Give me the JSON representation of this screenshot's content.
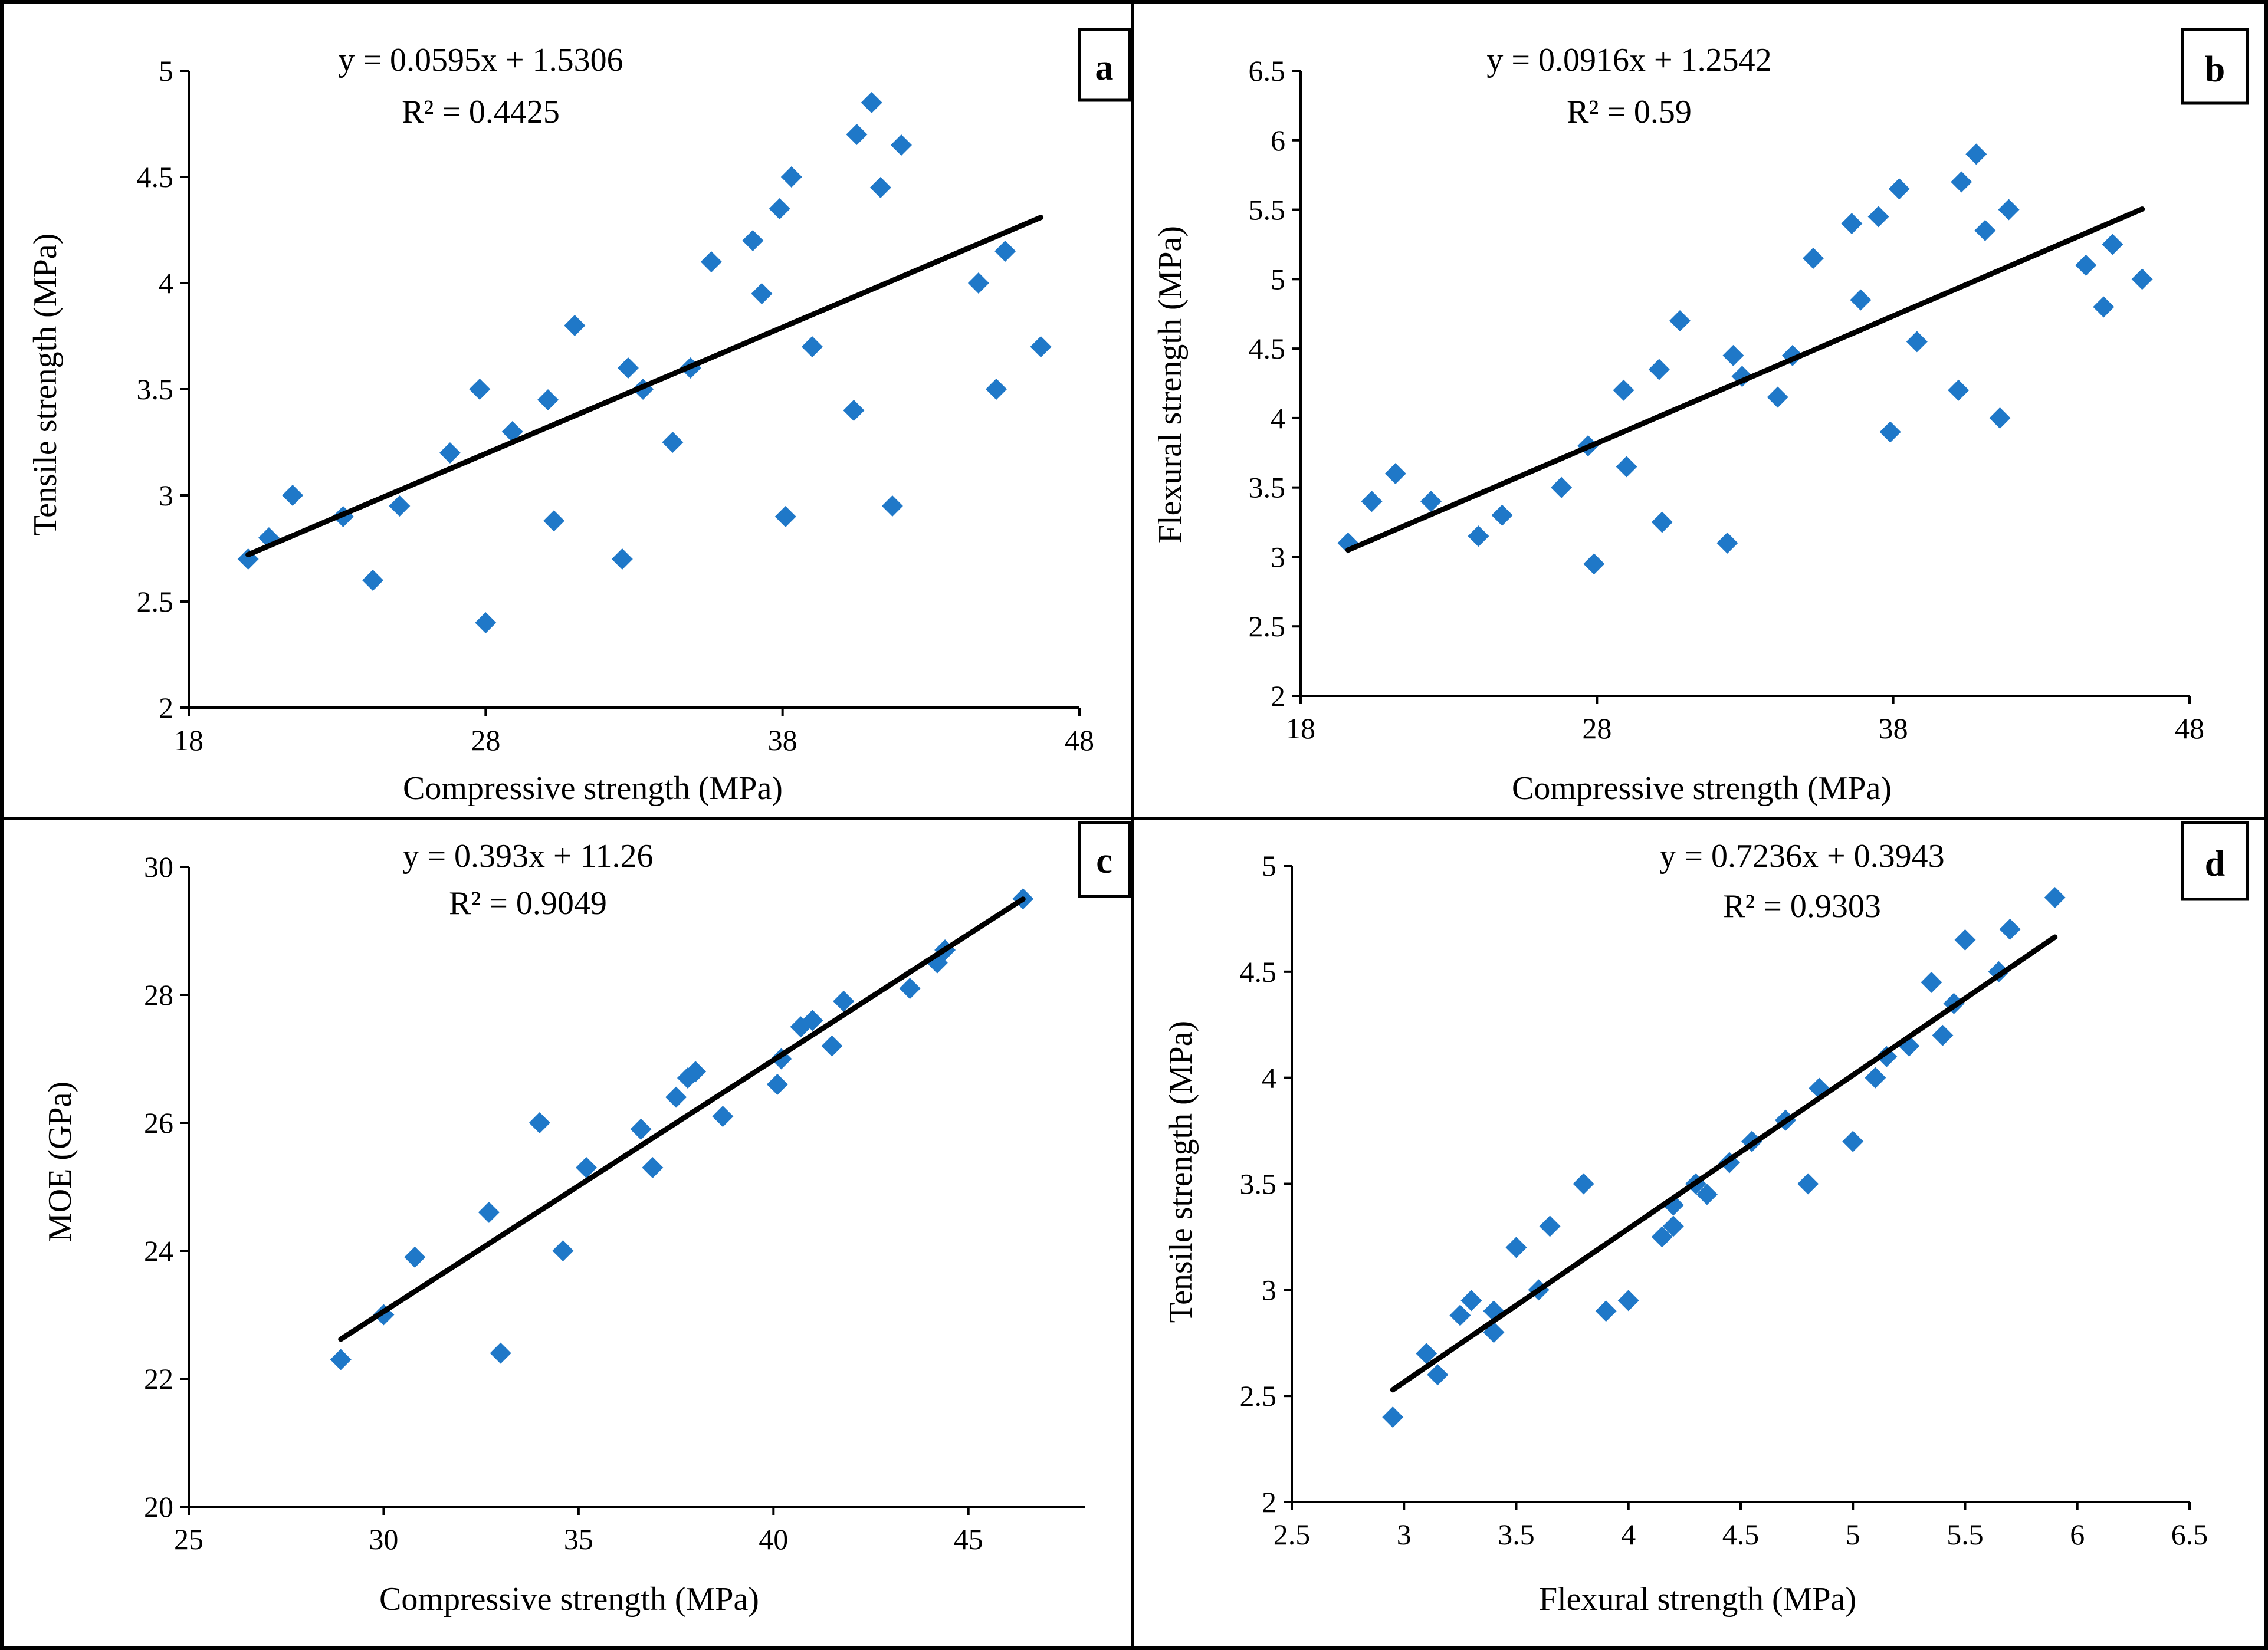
{
  "colors": {
    "marker": "#1f78c8",
    "trendline": "#000000",
    "axis": "#000000",
    "background": "#ffffff"
  },
  "chart_data": [
    {
      "panel": "a",
      "type": "scatter",
      "title": "",
      "xlabel": "Compressive strength (MPa)",
      "ylabel": "Tensile strength (MPa)",
      "xlim": [
        18,
        48
      ],
      "ylim": [
        2,
        5
      ],
      "xticks": [
        18,
        28,
        38,
        48
      ],
      "yticks": [
        2,
        2.5,
        3,
        3.5,
        4,
        4.5,
        5
      ],
      "xtick_labels": [
        "18",
        "28",
        "38",
        "48"
      ],
      "ytick_labels": [
        "2",
        "2.5",
        "3",
        "3.5",
        "4",
        "4.5",
        "5"
      ],
      "equation": "y = 0.0595x + 1.5306",
      "r2": "R² = 0.4425",
      "trendline": {
        "slope": 0.0595,
        "intercept": 1.5306,
        "x_range": [
          20.0,
          46.7
        ]
      },
      "series": [
        {
          "name": "data",
          "points": [
            [
              20.0,
              2.7
            ],
            [
              20.7,
              2.8
            ],
            [
              21.5,
              3.0
            ],
            [
              23.2,
              2.9
            ],
            [
              24.2,
              2.6
            ],
            [
              25.1,
              2.95
            ],
            [
              26.8,
              3.2
            ],
            [
              27.8,
              3.5
            ],
            [
              28.0,
              2.4
            ],
            [
              28.9,
              3.3
            ],
            [
              30.1,
              3.45
            ],
            [
              30.3,
              2.88
            ],
            [
              31.0,
              3.8
            ],
            [
              32.6,
              2.7
            ],
            [
              32.8,
              3.6
            ],
            [
              33.3,
              3.5
            ],
            [
              34.3,
              3.25
            ],
            [
              34.9,
              3.6
            ],
            [
              35.6,
              4.1
            ],
            [
              37.0,
              4.2
            ],
            [
              37.3,
              3.95
            ],
            [
              37.9,
              4.35
            ],
            [
              38.1,
              2.9
            ],
            [
              38.3,
              4.5
            ],
            [
              39.0,
              3.7
            ],
            [
              40.4,
              3.4
            ],
            [
              40.5,
              4.7
            ],
            [
              41.0,
              4.85
            ],
            [
              41.3,
              4.45
            ],
            [
              41.7,
              2.95
            ],
            [
              42.0,
              4.65
            ],
            [
              44.6,
              4.0
            ],
            [
              45.2,
              3.5
            ],
            [
              45.5,
              4.15
            ],
            [
              46.7,
              3.7
            ]
          ]
        }
      ]
    },
    {
      "panel": "b",
      "type": "scatter",
      "title": "",
      "xlabel": "Compressive strength (MPa)",
      "ylabel": "Flexural strength (MPa)",
      "xlim": [
        18,
        48
      ],
      "ylim": [
        2,
        6.5
      ],
      "xticks": [
        18,
        28,
        38,
        48
      ],
      "yticks": [
        2,
        2.5,
        3,
        3.5,
        4,
        4.5,
        5,
        5.5,
        6,
        6.5
      ],
      "xtick_labels": [
        "18",
        "28",
        "38",
        "48"
      ],
      "ytick_labels": [
        "2",
        "2.5",
        "3",
        "3.5",
        "4",
        "4.5",
        "5",
        "5.5",
        "6",
        "6.5"
      ],
      "equation": "y = 0.0916x + 1.2542",
      "r2": "R² = 0.59",
      "trendline": {
        "slope": 0.0916,
        "intercept": 1.2542,
        "x_range": [
          19.6,
          46.4
        ]
      },
      "series": [
        {
          "name": "data",
          "points": [
            [
              19.6,
              3.1
            ],
            [
              20.4,
              3.4
            ],
            [
              21.2,
              3.6
            ],
            [
              22.4,
              3.4
            ],
            [
              24.0,
              3.15
            ],
            [
              24.8,
              3.3
            ],
            [
              26.8,
              3.5
            ],
            [
              27.7,
              3.8
            ],
            [
              27.9,
              2.95
            ],
            [
              28.9,
              4.2
            ],
            [
              29.0,
              3.65
            ],
            [
              30.1,
              4.35
            ],
            [
              30.2,
              3.25
            ],
            [
              30.8,
              4.7
            ],
            [
              32.4,
              3.1
            ],
            [
              32.6,
              4.45
            ],
            [
              32.9,
              4.3
            ],
            [
              34.1,
              4.15
            ],
            [
              34.6,
              4.45
            ],
            [
              35.3,
              5.15
            ],
            [
              36.6,
              5.4
            ],
            [
              36.9,
              4.85
            ],
            [
              37.5,
              5.45
            ],
            [
              37.9,
              3.9
            ],
            [
              38.2,
              5.65
            ],
            [
              38.8,
              4.55
            ],
            [
              40.2,
              4.2
            ],
            [
              40.3,
              5.7
            ],
            [
              40.8,
              5.9
            ],
            [
              41.1,
              5.35
            ],
            [
              41.6,
              4.0
            ],
            [
              41.9,
              5.5
            ],
            [
              44.5,
              5.1
            ],
            [
              45.1,
              4.8
            ],
            [
              45.4,
              5.25
            ],
            [
              46.4,
              5.0
            ]
          ]
        }
      ]
    },
    {
      "panel": "c",
      "type": "scatter",
      "title": "",
      "xlabel": "Compressive strength (MPa)",
      "ylabel": "MOE (GPa)",
      "xlim": [
        25,
        48
      ],
      "ylim": [
        20,
        30
      ],
      "xticks": [
        25,
        30,
        35,
        40,
        45
      ],
      "yticks": [
        20,
        22,
        24,
        26,
        28,
        30
      ],
      "xtick_labels": [
        "25",
        "30",
        "35",
        "40",
        "45"
      ],
      "ytick_labels": [
        "20",
        "22",
        "24",
        "26",
        "28",
        "30"
      ],
      "equation": "y = 0.393x + 11.26",
      "r2": "R² = 0.9049",
      "trendline": {
        "slope": 0.393,
        "intercept": 11.26,
        "x_range": [
          28.9,
          46.4
        ]
      },
      "series": [
        {
          "name": "data",
          "points": [
            [
              28.9,
              22.3
            ],
            [
              30.0,
              23.0
            ],
            [
              30.8,
              23.9
            ],
            [
              32.7,
              24.6
            ],
            [
              33.0,
              22.4
            ],
            [
              34.0,
              26.0
            ],
            [
              34.6,
              24.0
            ],
            [
              35.2,
              25.3
            ],
            [
              36.6,
              25.9
            ],
            [
              36.9,
              25.3
            ],
            [
              37.5,
              26.4
            ],
            [
              37.8,
              26.7
            ],
            [
              38.0,
              26.8
            ],
            [
              38.7,
              26.1
            ],
            [
              40.1,
              26.6
            ],
            [
              40.2,
              27.0
            ],
            [
              40.7,
              27.5
            ],
            [
              41.0,
              27.6
            ],
            [
              41.5,
              27.2
            ],
            [
              41.8,
              27.9
            ],
            [
              43.5,
              28.1
            ],
            [
              44.2,
              28.5
            ],
            [
              44.4,
              28.7
            ],
            [
              46.4,
              29.5
            ]
          ]
        }
      ]
    },
    {
      "panel": "d",
      "type": "scatter",
      "title": "",
      "xlabel": "Flexural strength (MPa)",
      "ylabel": "Tensile strength (MPa)",
      "xlim": [
        2.5,
        6.5
      ],
      "ylim": [
        2,
        5
      ],
      "xticks": [
        2.5,
        3,
        3.5,
        4,
        4.5,
        5,
        5.5,
        6,
        6.5
      ],
      "yticks": [
        2,
        2.5,
        3,
        3.5,
        4,
        4.5,
        5
      ],
      "xtick_labels": [
        "2.5",
        "3",
        "3.5",
        "4",
        "4.5",
        "5",
        "5.5",
        "6",
        "6.5"
      ],
      "ytick_labels": [
        "2",
        "2.5",
        "3",
        "3.5",
        "4",
        "4.5",
        "5"
      ],
      "equation": "y = 0.7236x + 0.3943",
      "r2": "R² = 0.9303",
      "trendline": {
        "slope": 0.7236,
        "intercept": 0.3943,
        "x_range": [
          2.95,
          5.9
        ]
      },
      "series": [
        {
          "name": "data",
          "points": [
            [
              2.95,
              2.4
            ],
            [
              3.1,
              2.7
            ],
            [
              3.15,
              2.6
            ],
            [
              3.25,
              2.88
            ],
            [
              3.3,
              2.95
            ],
            [
              3.4,
              2.8
            ],
            [
              3.4,
              2.9
            ],
            [
              3.5,
              3.2
            ],
            [
              3.6,
              3.0
            ],
            [
              3.65,
              3.3
            ],
            [
              3.8,
              3.5
            ],
            [
              3.9,
              2.9
            ],
            [
              4.0,
              2.95
            ],
            [
              4.15,
              3.25
            ],
            [
              4.2,
              3.3
            ],
            [
              4.2,
              3.4
            ],
            [
              4.3,
              3.5
            ],
            [
              4.35,
              3.45
            ],
            [
              4.45,
              3.6
            ],
            [
              4.55,
              3.7
            ],
            [
              4.7,
              3.8
            ],
            [
              4.8,
              3.5
            ],
            [
              4.85,
              3.95
            ],
            [
              5.0,
              3.7
            ],
            [
              5.1,
              4.0
            ],
            [
              5.15,
              4.1
            ],
            [
              5.25,
              4.15
            ],
            [
              5.35,
              4.45
            ],
            [
              5.4,
              4.2
            ],
            [
              5.45,
              4.35
            ],
            [
              5.5,
              4.65
            ],
            [
              5.65,
              4.5
            ],
            [
              5.7,
              4.7
            ],
            [
              5.9,
              4.85
            ]
          ]
        }
      ]
    }
  ]
}
